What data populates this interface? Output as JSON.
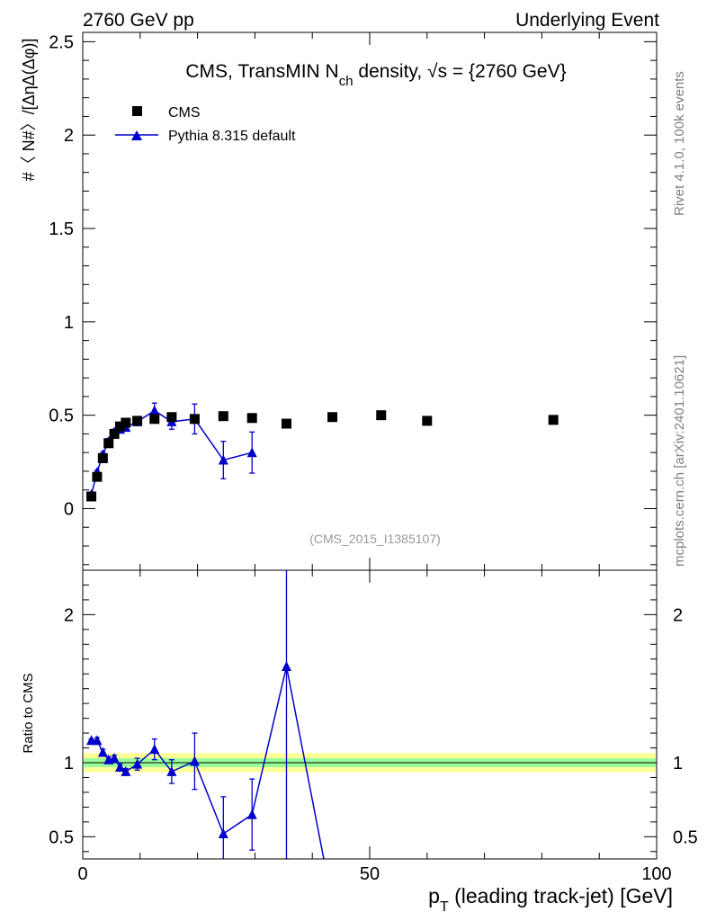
{
  "header": {
    "left_label": "2760 GeV pp",
    "right_label": "Underlying Event"
  },
  "side_labels": {
    "top": "Rivet 4.1.0,  100k events",
    "bottom": "mcplots.cern.ch [arXiv:2401.10621]"
  },
  "colors": {
    "data": "#000000",
    "mc": "#0000cc",
    "band_inner": "#99ff99",
    "band_outer": "#ffff99"
  },
  "chart_data": [
    {
      "type": "scatter",
      "panel": "main",
      "title": "CMS, TransMIN N_ch density, √s = {2760 GeV}",
      "title_parts": {
        "prefix": "CMS, TransMIN N",
        "sub": "ch",
        "suffix": " density, ",
        "sqrt_symbol": "√s",
        "energy": " = {2760 GeV}"
      },
      "ylabel": "#〈 N#〉/[ΔηΔ(Δφ)]",
      "xlim": [
        0,
        100
      ],
      "ylim": [
        -0.33,
        2.55
      ],
      "yticks": [
        0,
        0.5,
        1,
        1.5,
        2,
        2.5
      ],
      "ytick_labels": [
        "0",
        "0.5",
        "1",
        "1.5",
        "2",
        "2.5"
      ],
      "annotation": "(CMS_2015_I1385107)",
      "legend": [
        {
          "name": "CMS",
          "marker": "square"
        },
        {
          "name": "Pythia 8.315 default",
          "marker": "triangle"
        }
      ],
      "series": [
        {
          "name": "CMS",
          "marker": "square",
          "x": [
            1.5,
            2.5,
            3.5,
            4.5,
            5.5,
            6.5,
            7.5,
            9.5,
            12.5,
            15.5,
            19.5,
            24.5,
            29.5,
            35.5,
            43.5,
            52,
            60,
            82
          ],
          "y": [
            0.065,
            0.17,
            0.27,
            0.35,
            0.4,
            0.44,
            0.46,
            0.47,
            0.48,
            0.49,
            0.48,
            0.495,
            0.485,
            0.455,
            0.49,
            0.5,
            0.47,
            0.475
          ]
        },
        {
          "name": "Pythia 8.315 default",
          "marker": "triangle",
          "x": [
            1.5,
            2.5,
            3.5,
            4.5,
            5.5,
            6.5,
            7.5,
            9.5,
            12.5,
            15.5,
            19.5,
            24.5,
            29.5
          ],
          "y": [
            0.075,
            0.195,
            0.29,
            0.36,
            0.41,
            0.425,
            0.435,
            0.465,
            0.525,
            0.465,
            0.48,
            0.26,
            0.3
          ],
          "yerr": [
            0.005,
            0.01,
            0.012,
            0.015,
            0.015,
            0.015,
            0.015,
            0.02,
            0.04,
            0.04,
            0.08,
            0.1,
            0.11
          ]
        }
      ]
    },
    {
      "type": "line",
      "panel": "ratio",
      "ylabel": "Ratio to CMS",
      "xlabel": "p_T (leading track-jet) [GeV]",
      "xlabel_parts": {
        "p": "p",
        "sub": "T",
        "rest": " (leading track-jet) [GeV]"
      },
      "xlim": [
        0,
        100
      ],
      "xticks": [
        0,
        50,
        100
      ],
      "xtick_labels": [
        "0",
        "50",
        "100"
      ],
      "ylim": [
        0.35,
        2.3
      ],
      "yticks": [
        0.5,
        1,
        2
      ],
      "ytick_labels": [
        "0.5",
        "1",
        "2"
      ],
      "reference_line": 1,
      "band_inner_halfwidth": 0.03,
      "band_outer_halfwidth": 0.065,
      "series": [
        {
          "name": "Pythia 8.315 default / CMS",
          "marker": "triangle",
          "x": [
            1.5,
            2.5,
            3.5,
            4.5,
            5.5,
            6.5,
            7.5,
            9.5,
            12.5,
            15.5,
            19.5,
            24.5,
            29.5,
            35.5,
            42.0
          ],
          "y": [
            1.15,
            1.15,
            1.07,
            1.02,
            1.03,
            0.97,
            0.94,
            0.99,
            1.09,
            0.94,
            1.01,
            0.52,
            0.65,
            1.65,
            0.35
          ],
          "yerr": [
            0.01,
            0.02,
            0.02,
            0.02,
            0.02,
            0.02,
            0.02,
            0.04,
            0.07,
            0.08,
            0.19,
            0.25,
            0.24,
            1.3,
            0
          ]
        }
      ]
    }
  ]
}
